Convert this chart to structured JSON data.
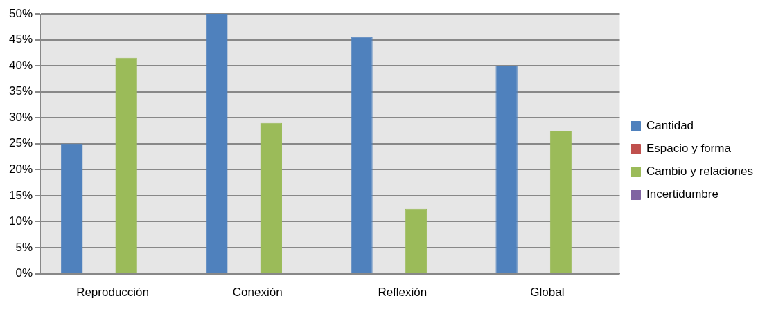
{
  "chart_data": {
    "type": "bar",
    "categories": [
      "Reproducción",
      "Conexión",
      "Reflexión",
      "Global"
    ],
    "series": [
      {
        "name": "Cantidad",
        "color": "#4f81bd",
        "values": [
          25,
          50,
          45.5,
          40
        ]
      },
      {
        "name": "Espacio y forma",
        "color": "#c0504d",
        "values": [
          0,
          0,
          0,
          0
        ]
      },
      {
        "name": "Cambio y relaciones",
        "color": "#9bbb59",
        "values": [
          41.5,
          29,
          12.5,
          27.5
        ]
      },
      {
        "name": "Incertidumbre",
        "color": "#8064a2",
        "values": [
          0,
          0,
          0,
          0
        ]
      }
    ],
    "ylim": [
      0,
      50
    ],
    "yticks": [
      {
        "value": 0,
        "label": "0%"
      },
      {
        "value": 5,
        "label": "5%"
      },
      {
        "value": 10,
        "label": "10%"
      },
      {
        "value": 15,
        "label": "15%"
      },
      {
        "value": 20,
        "label": "20%"
      },
      {
        "value": 25,
        "label": "25%"
      },
      {
        "value": 30,
        "label": "30%"
      },
      {
        "value": 35,
        "label": "35%"
      },
      {
        "value": 40,
        "label": "40%"
      },
      {
        "value": 45,
        "label": "45%"
      },
      {
        "value": 50,
        "label": "50%"
      }
    ],
    "grid": "y",
    "legend": "right"
  }
}
